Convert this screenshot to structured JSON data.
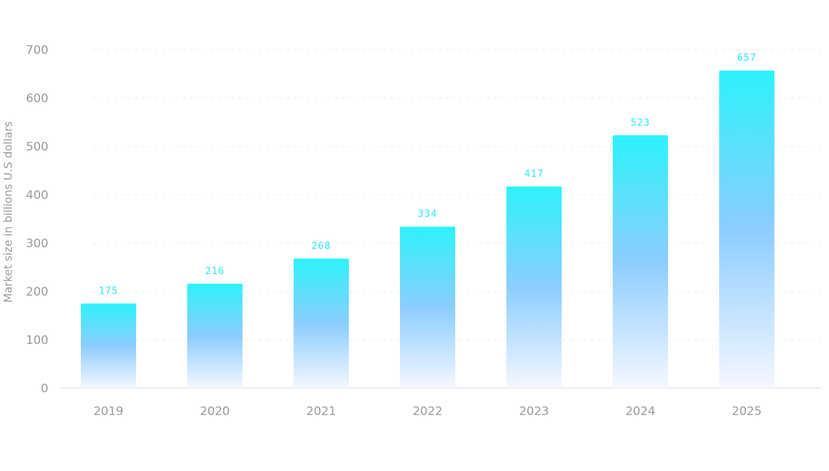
{
  "chart_data": {
    "type": "bar",
    "title": "",
    "xlabel": "",
    "ylabel": "Market size in billions U.S dollars",
    "categories": [
      "2019",
      "2020",
      "2021",
      "2022",
      "2023",
      "2024",
      "2025"
    ],
    "values": [
      175,
      216,
      268,
      334,
      417,
      523,
      657
    ],
    "value_labels": [
      "175",
      "216",
      "268",
      "334",
      "417",
      "523",
      "657"
    ],
    "y_ticks": [
      "0",
      "100",
      "200",
      "300",
      "400",
      "500",
      "600",
      "700"
    ],
    "ylim": [
      0,
      700
    ],
    "grid": true,
    "grid_style": "dashed",
    "legend": "none",
    "colors": {
      "bar_top": "#2ef2fb",
      "bar_middle": "#8ccdff",
      "bar_bottom": "#f6f7ff",
      "value_label": "#2ee6f5",
      "tick_label": "#9a9a9a",
      "grid": "#e4e8ee",
      "baseline": "#e6e6e6"
    }
  }
}
